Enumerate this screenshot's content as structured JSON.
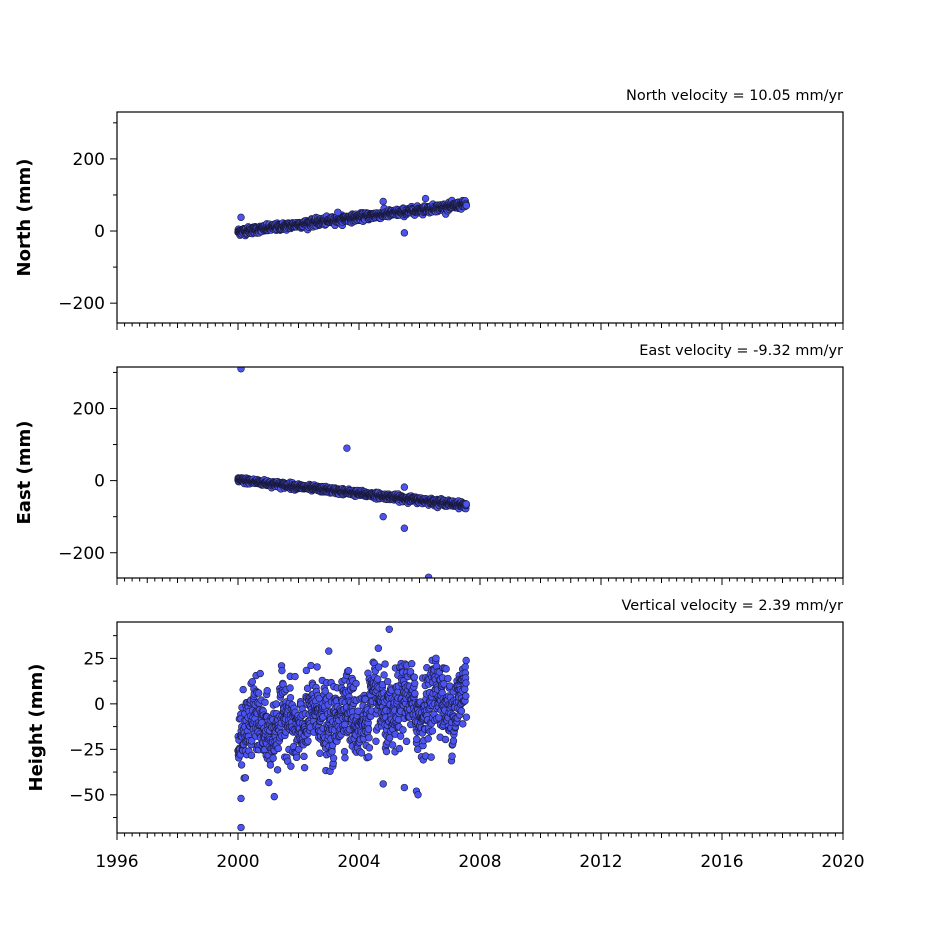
{
  "chart_data": [
    {
      "type": "scatter",
      "title": "North velocity = 10.05 mm/yr",
      "ylabel": "North (mm)",
      "xlim": [
        1996,
        2020
      ],
      "ylim": [
        -255,
        330
      ],
      "yticks": [
        -200,
        0,
        200
      ],
      "ytick_labels": [
        "−200",
        "0",
        "200"
      ],
      "xticks": [
        1996,
        2000,
        2004,
        2008,
        2012,
        2016,
        2020
      ],
      "show_xtick_labels": false,
      "color": "#4b53f0",
      "trend": {
        "y_start": -2,
        "rate_mm_per_yr": 10.05,
        "t0": 2000.0
      },
      "time_range": [
        2000.0,
        2007.55
      ],
      "noise_mm": 5,
      "outliers": [
        [
          2000.1,
          38
        ],
        [
          2003.3,
          52
        ],
        [
          2004.8,
          82
        ],
        [
          2005.5,
          -5
        ],
        [
          2006.2,
          90
        ]
      ]
    },
    {
      "type": "scatter",
      "title": "East velocity = -9.32 mm/yr",
      "ylabel": "East (mm)",
      "xlim": [
        1996,
        2020
      ],
      "ylim": [
        -270,
        315
      ],
      "yticks": [
        -200,
        0,
        200
      ],
      "ytick_labels": [
        "−200",
        "0",
        "200"
      ],
      "xticks": [
        1996,
        2000,
        2004,
        2008,
        2012,
        2016,
        2020
      ],
      "show_xtick_labels": false,
      "color": "#4b53f0",
      "trend": {
        "y_start": 2,
        "rate_mm_per_yr": -9.32,
        "t0": 2000.0
      },
      "time_range": [
        2000.0,
        2007.55
      ],
      "noise_mm": 4,
      "outliers": [
        [
          2000.1,
          310
        ],
        [
          2003.6,
          90
        ],
        [
          2004.8,
          -100
        ],
        [
          2005.5,
          -18
        ],
        [
          2005.5,
          -132
        ],
        [
          2006.3,
          -268
        ]
      ]
    },
    {
      "type": "scatter",
      "title": "Vertical velocity = 2.39 mm/yr",
      "ylabel": "Height (mm)",
      "xlim": [
        1996,
        2020
      ],
      "ylim": [
        -71,
        45
      ],
      "yticks": [
        -50,
        -25,
        0,
        25
      ],
      "ytick_labels": [
        "−50",
        "−25",
        "0",
        "25"
      ],
      "xticks": [
        1996,
        2000,
        2004,
        2008,
        2012,
        2016,
        2020
      ],
      "xtick_labels": [
        "1996",
        "2000",
        "2004",
        "2008",
        "2012",
        "2016",
        "2020"
      ],
      "show_xtick_labels": true,
      "color": "#4b53f0",
      "trend": {
        "y_start": -15,
        "rate_mm_per_yr": 2.39,
        "t0": 2000.0
      },
      "time_range": [
        2000.0,
        2007.55
      ],
      "noise_mm": 10,
      "outliers": [
        [
          2000.1,
          -68
        ],
        [
          2000.1,
          -52
        ],
        [
          2001.2,
          -51
        ],
        [
          2004.8,
          -44
        ],
        [
          2005.5,
          -46
        ],
        [
          2005.9,
          -48
        ],
        [
          2005.95,
          -50
        ],
        [
          2005.0,
          41
        ],
        [
          2003.0,
          29
        ]
      ]
    }
  ]
}
